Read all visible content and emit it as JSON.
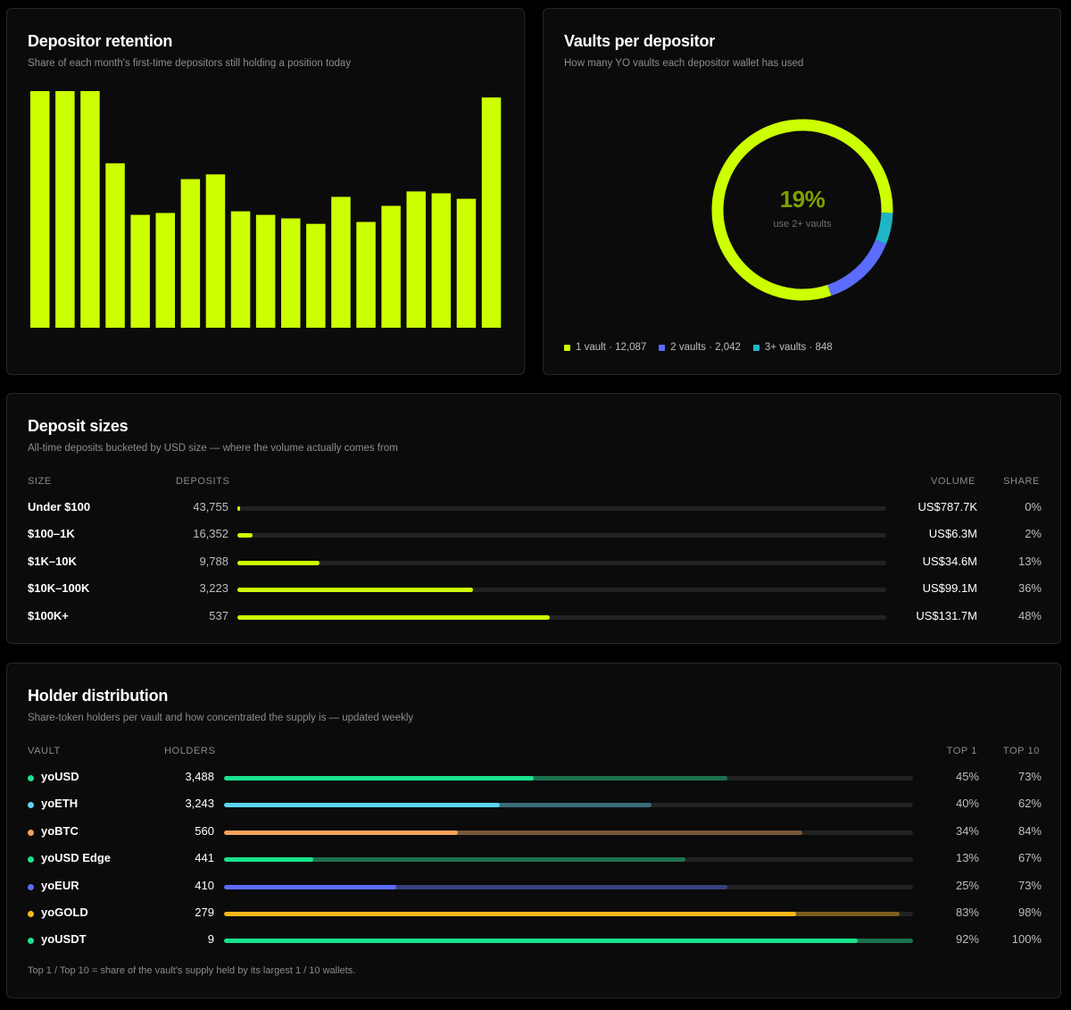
{
  "retention": {
    "title": "Depositor retention",
    "subtitle": "Share of each month's first-time depositors still holding a position today",
    "color": "#ccff00"
  },
  "chart_data": {
    "type": "bar",
    "values": [
      100,
      100,
      100,
      69.5,
      47.7,
      48.5,
      62.8,
      64.8,
      49.2,
      47.7,
      46.2,
      43.9,
      55.3,
      44.7,
      51.5,
      57.6,
      56.8,
      54.5,
      97.3
    ],
    "ylim": [
      0,
      100
    ]
  },
  "vaults": {
    "title": "Vaults per depositor",
    "subtitle": "How many YO vaults each depositor wallet has used",
    "center_value": "19%",
    "center_label": "use 2+ vaults",
    "segments": [
      {
        "label": "1 vault · 12,087",
        "count": 12087,
        "color": "#ccff00"
      },
      {
        "label": "2 vaults · 2,042",
        "count": 2042,
        "color": "#5b6cff"
      },
      {
        "label": "3+ vaults · 848",
        "count": 848,
        "color": "#1fb5c9"
      }
    ]
  },
  "sizes": {
    "title": "Deposit sizes",
    "subtitle": "All-time deposits bucketed by USD size — where the volume actually comes from",
    "headers": {
      "size": "SIZE",
      "deposits": "DEPOSITS",
      "volume": "VOLUME",
      "share": "SHARE"
    },
    "rows": [
      {
        "name": "Under $100",
        "deposits": "43,755",
        "fill": 0.004,
        "volume": "US$787.7K",
        "share": "0%"
      },
      {
        "name": "$100–1K",
        "deposits": "16,352",
        "fill": 0.023,
        "volume": "US$6.3M",
        "share": "2%"
      },
      {
        "name": "$1K–10K",
        "deposits": "9,788",
        "fill": 0.126,
        "volume": "US$34.6M",
        "share": "13%"
      },
      {
        "name": "$10K–100K",
        "deposits": "3,223",
        "fill": 0.363,
        "volume": "US$99.1M",
        "share": "36%"
      },
      {
        "name": "$100K+",
        "deposits": "537",
        "fill": 0.482,
        "volume": "US$131.7M",
        "share": "48%"
      }
    ]
  },
  "holders": {
    "title": "Holder distribution",
    "subtitle": "Share-token holders per vault and how concentrated the supply is — updated weekly",
    "headers": {
      "vault": "VAULT",
      "holders": "HOLDERS",
      "top1": "TOP 1",
      "top10": "TOP 10"
    },
    "rows": [
      {
        "name": "yoUSD",
        "holders": "3,488",
        "top1": "45%",
        "top10": "73%",
        "top1_val": 0.45,
        "top10_val": 0.73,
        "color": "#19e38c"
      },
      {
        "name": "yoETH",
        "holders": "3,243",
        "top1": "40%",
        "top10": "62%",
        "top1_val": 0.4,
        "top10_val": 0.62,
        "color": "#5ad4f0"
      },
      {
        "name": "yoBTC",
        "holders": "560",
        "top1": "34%",
        "top10": "84%",
        "top1_val": 0.34,
        "top10_val": 0.84,
        "color": "#f5a25a"
      },
      {
        "name": "yoUSD Edge",
        "holders": "441",
        "top1": "13%",
        "top10": "67%",
        "top1_val": 0.13,
        "top10_val": 0.67,
        "color": "#19e38c"
      },
      {
        "name": "yoEUR",
        "holders": "410",
        "top1": "25%",
        "top10": "73%",
        "top1_val": 0.25,
        "top10_val": 0.73,
        "color": "#5b6cff"
      },
      {
        "name": "yoGOLD",
        "holders": "279",
        "top1": "83%",
        "top10": "98%",
        "top1_val": 0.83,
        "top10_val": 0.98,
        "color": "#f7b81a"
      },
      {
        "name": "yoUSDT",
        "holders": "9",
        "top1": "92%",
        "top10": "100%",
        "top1_val": 0.92,
        "top10_val": 1.0,
        "color": "#19e38c"
      }
    ],
    "footnote": "Top 1 / Top 10 = share of the vault's supply held by its largest 1 / 10 wallets."
  }
}
